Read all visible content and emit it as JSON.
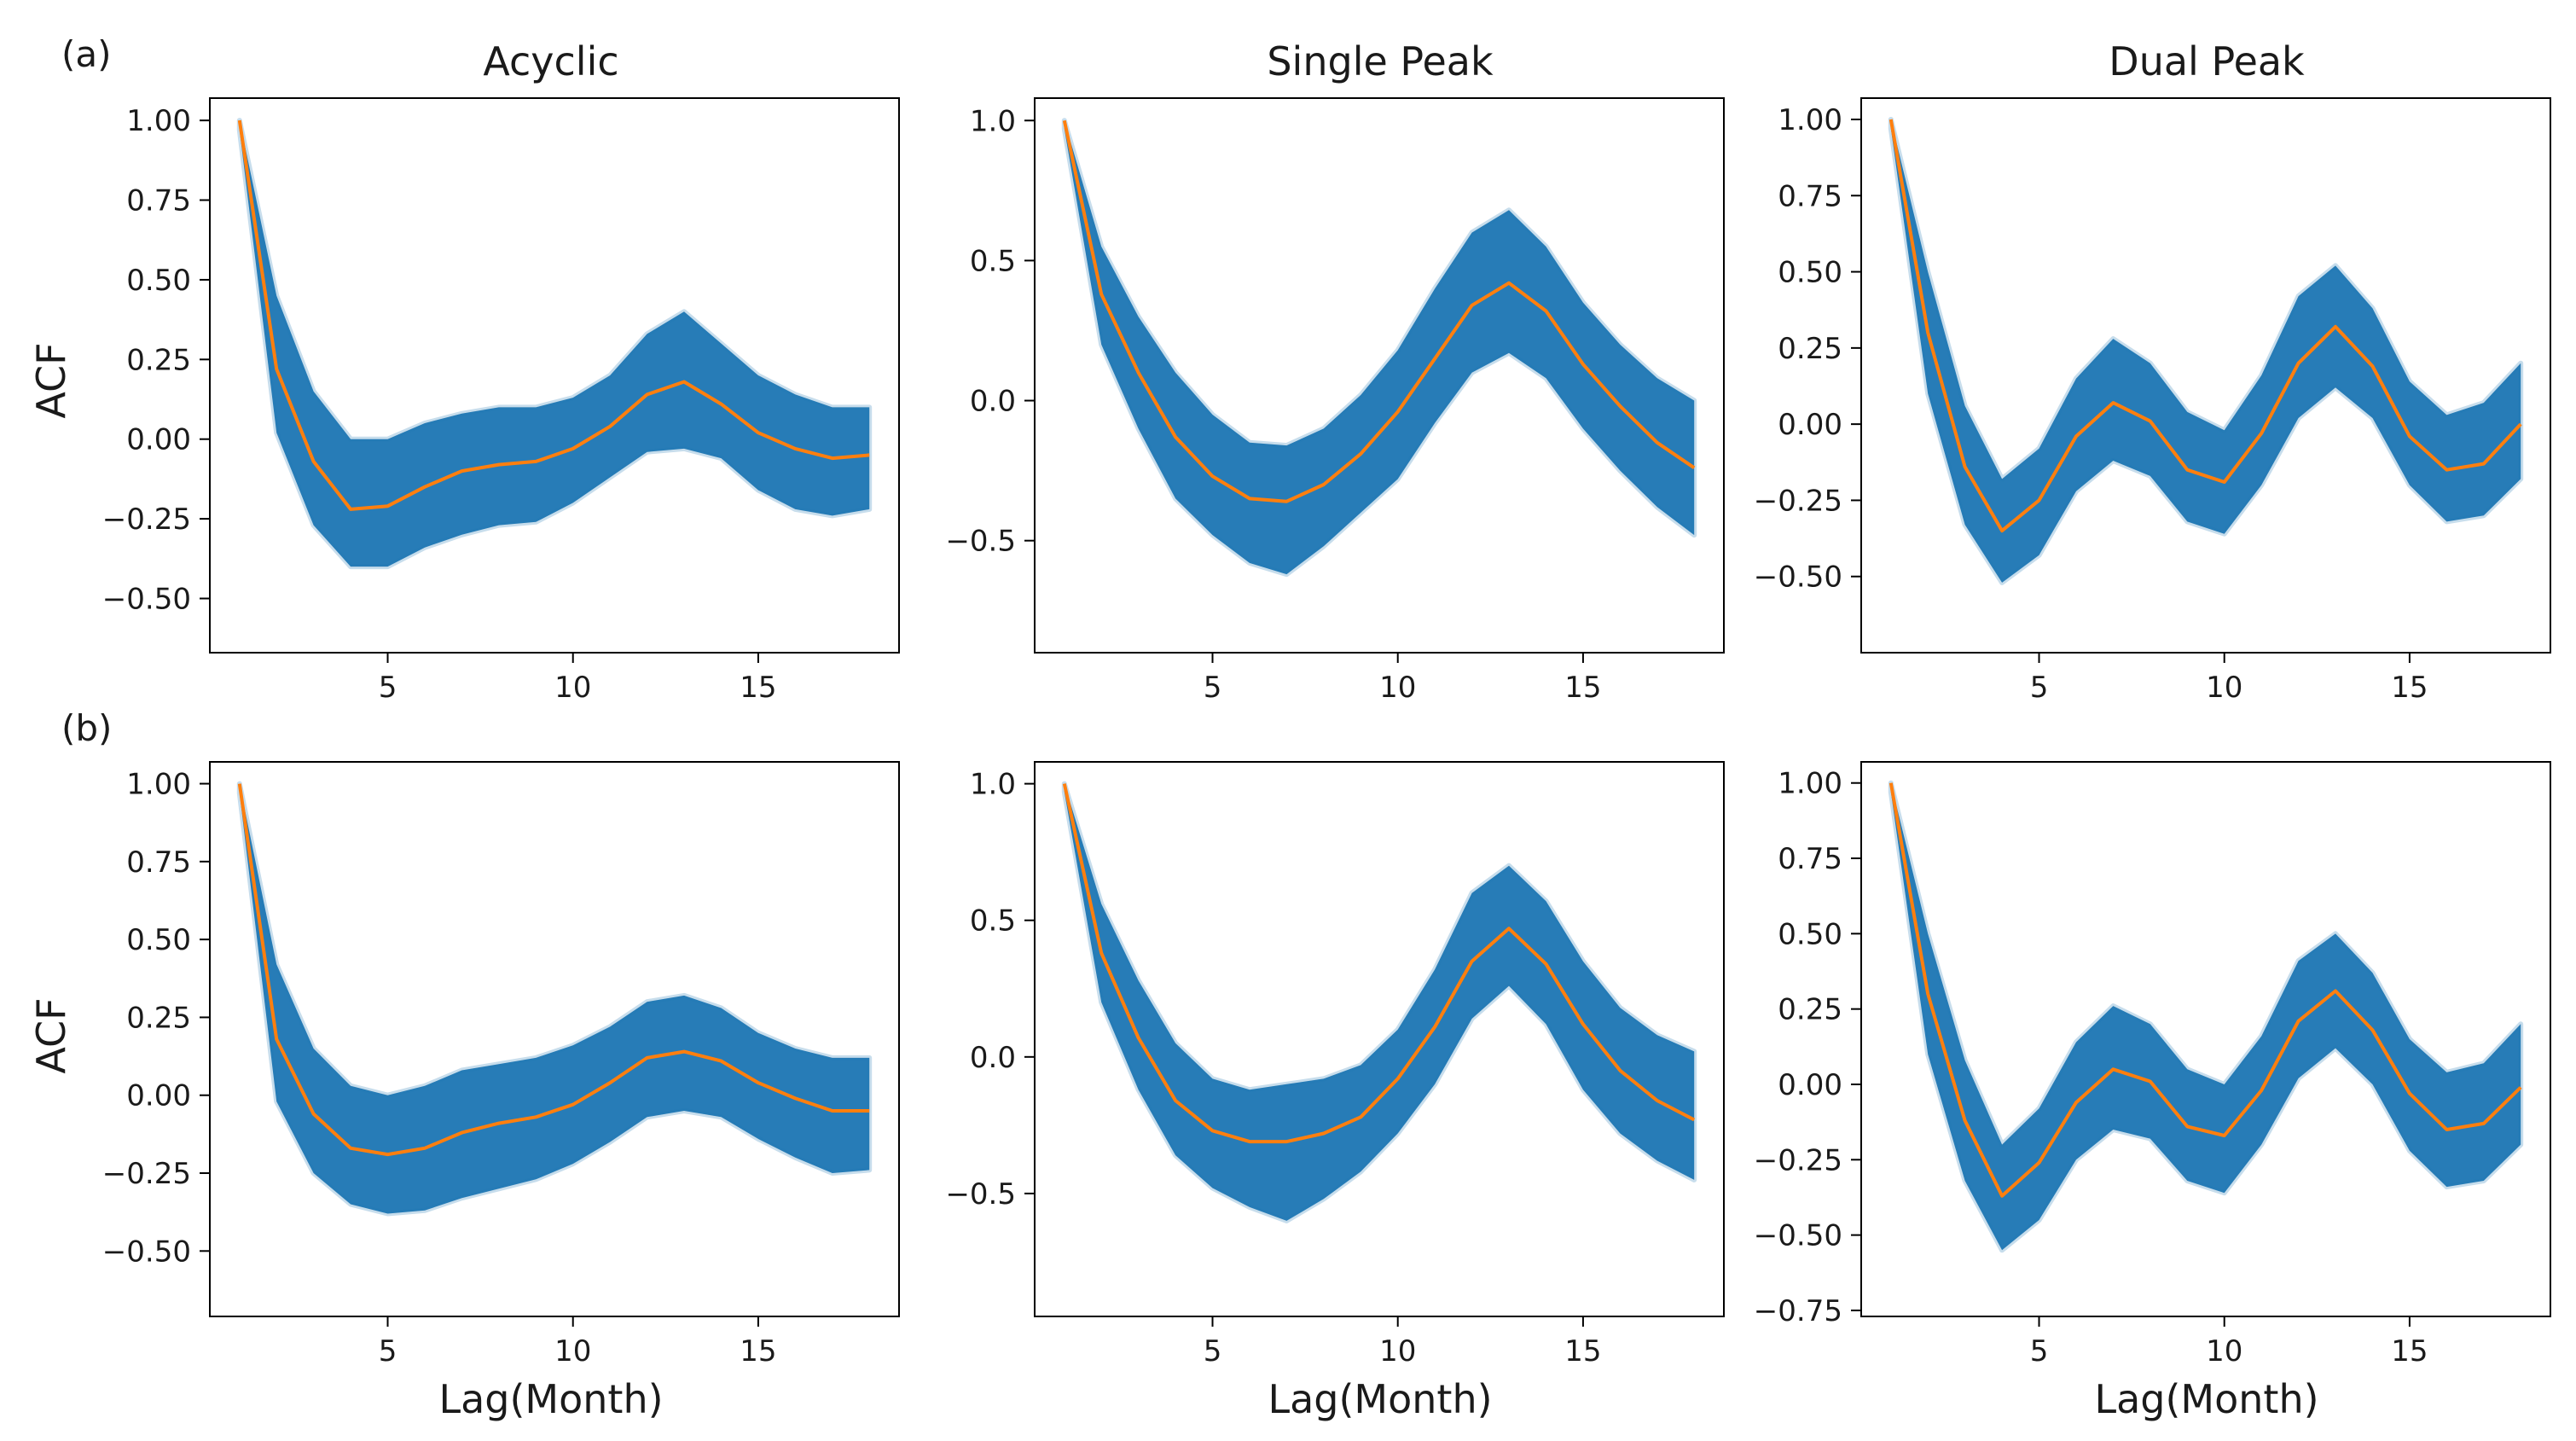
{
  "row_labels": [
    "(a)",
    "(b)"
  ],
  "column_titles": [
    "Acyclic",
    "Single Peak",
    "Dual Peak"
  ],
  "xlabel": "Lag(Month)",
  "ylabel": "ACF",
  "colors": {
    "band": "#1f77b4",
    "mean": "#ff7f0e",
    "axis": "#000000"
  },
  "chart_data": [
    {
      "id": "a-acyclic",
      "type": "line",
      "row": "(a)",
      "title": "Acyclic",
      "xlabel": "",
      "ylabel": "ACF",
      "xlim": [
        0.2,
        18.8
      ],
      "ylim": [
        -0.67,
        1.07
      ],
      "xticks": [
        5,
        10,
        15
      ],
      "yticks": [
        1.0,
        0.75,
        0.5,
        0.25,
        0.0,
        -0.25,
        -0.5
      ],
      "ytick_labels": [
        "1.00",
        "0.75",
        "0.50",
        "0.25",
        "0.00",
        "−0.25",
        "−0.50"
      ],
      "x": [
        1,
        2,
        3,
        4,
        5,
        6,
        7,
        8,
        9,
        10,
        11,
        12,
        13,
        14,
        15,
        16,
        17,
        18
      ],
      "series": [
        {
          "name": "mean ACF",
          "values": [
            1.0,
            0.22,
            -0.07,
            -0.22,
            -0.21,
            -0.15,
            -0.1,
            -0.08,
            -0.07,
            -0.03,
            0.04,
            0.14,
            0.18,
            0.11,
            0.02,
            -0.03,
            -0.06,
            -0.05
          ]
        }
      ],
      "band": {
        "upper": [
          1.0,
          0.45,
          0.15,
          0.0,
          0.0,
          0.05,
          0.08,
          0.1,
          0.1,
          0.13,
          0.2,
          0.33,
          0.4,
          0.3,
          0.2,
          0.14,
          0.1,
          0.1
        ],
        "lower": [
          0.97,
          0.02,
          -0.27,
          -0.4,
          -0.4,
          -0.34,
          -0.3,
          -0.27,
          -0.26,
          -0.2,
          -0.12,
          -0.04,
          -0.03,
          -0.06,
          -0.16,
          -0.22,
          -0.24,
          -0.22
        ]
      }
    },
    {
      "id": "a-single",
      "type": "line",
      "row": "(a)",
      "title": "Single Peak",
      "xlabel": "",
      "ylabel": "",
      "xlim": [
        0.2,
        18.8
      ],
      "ylim": [
        -0.9,
        1.08
      ],
      "xticks": [
        5,
        10,
        15
      ],
      "yticks": [
        1.0,
        0.5,
        0.0,
        -0.5
      ],
      "ytick_labels": [
        "1.0",
        "0.5",
        "0.0",
        "−0.5"
      ],
      "x": [
        1,
        2,
        3,
        4,
        5,
        6,
        7,
        8,
        9,
        10,
        11,
        12,
        13,
        14,
        15,
        16,
        17,
        18
      ],
      "series": [
        {
          "name": "mean ACF",
          "values": [
            1.0,
            0.38,
            0.1,
            -0.13,
            -0.27,
            -0.35,
            -0.36,
            -0.3,
            -0.19,
            -0.04,
            0.15,
            0.34,
            0.42,
            0.32,
            0.13,
            -0.02,
            -0.15,
            -0.24
          ]
        }
      ],
      "band": {
        "upper": [
          1.0,
          0.55,
          0.3,
          0.1,
          -0.05,
          -0.15,
          -0.16,
          -0.1,
          0.02,
          0.18,
          0.4,
          0.6,
          0.68,
          0.55,
          0.35,
          0.2,
          0.08,
          0.0
        ],
        "lower": [
          0.97,
          0.2,
          -0.1,
          -0.35,
          -0.48,
          -0.58,
          -0.62,
          -0.52,
          -0.4,
          -0.28,
          -0.08,
          0.1,
          0.17,
          0.08,
          -0.1,
          -0.25,
          -0.38,
          -0.48
        ]
      }
    },
    {
      "id": "a-dual",
      "type": "line",
      "row": "(a)",
      "title": "Dual Peak",
      "xlabel": "",
      "ylabel": "",
      "xlim": [
        0.2,
        18.8
      ],
      "ylim": [
        -0.75,
        1.07
      ],
      "xticks": [
        5,
        10,
        15
      ],
      "yticks": [
        1.0,
        0.75,
        0.5,
        0.25,
        0.0,
        -0.25,
        -0.5
      ],
      "ytick_labels": [
        "1.00",
        "0.75",
        "0.50",
        "0.25",
        "0.00",
        "−0.25",
        "−0.50"
      ],
      "x": [
        1,
        2,
        3,
        4,
        5,
        6,
        7,
        8,
        9,
        10,
        11,
        12,
        13,
        14,
        15,
        16,
        17,
        18
      ],
      "series": [
        {
          "name": "mean ACF",
          "values": [
            1.0,
            0.3,
            -0.14,
            -0.35,
            -0.25,
            -0.04,
            0.07,
            0.01,
            -0.15,
            -0.19,
            -0.03,
            0.2,
            0.32,
            0.19,
            -0.04,
            -0.15,
            -0.13,
            0.0
          ]
        }
      ],
      "band": {
        "upper": [
          1.0,
          0.5,
          0.06,
          -0.18,
          -0.08,
          0.15,
          0.28,
          0.2,
          0.04,
          -0.02,
          0.16,
          0.42,
          0.52,
          0.38,
          0.14,
          0.03,
          0.07,
          0.2
        ],
        "lower": [
          0.97,
          0.1,
          -0.33,
          -0.52,
          -0.43,
          -0.22,
          -0.12,
          -0.17,
          -0.32,
          -0.36,
          -0.2,
          0.02,
          0.12,
          0.02,
          -0.2,
          -0.32,
          -0.3,
          -0.18
        ]
      }
    },
    {
      "id": "b-acyclic",
      "type": "line",
      "row": "(b)",
      "title": "",
      "xlabel": "Lag(Month)",
      "ylabel": "ACF",
      "xlim": [
        0.2,
        18.8
      ],
      "ylim": [
        -0.71,
        1.07
      ],
      "xticks": [
        5,
        10,
        15
      ],
      "yticks": [
        1.0,
        0.75,
        0.5,
        0.25,
        0.0,
        -0.25,
        -0.5
      ],
      "ytick_labels": [
        "1.00",
        "0.75",
        "0.50",
        "0.25",
        "0.00",
        "−0.25",
        "−0.50"
      ],
      "x": [
        1,
        2,
        3,
        4,
        5,
        6,
        7,
        8,
        9,
        10,
        11,
        12,
        13,
        14,
        15,
        16,
        17,
        18
      ],
      "series": [
        {
          "name": "mean ACF",
          "values": [
            1.0,
            0.18,
            -0.06,
            -0.17,
            -0.19,
            -0.17,
            -0.12,
            -0.09,
            -0.07,
            -0.03,
            0.04,
            0.12,
            0.14,
            0.11,
            0.04,
            -0.01,
            -0.05,
            -0.05
          ]
        }
      ],
      "band": {
        "upper": [
          1.0,
          0.42,
          0.15,
          0.03,
          0.0,
          0.03,
          0.08,
          0.1,
          0.12,
          0.16,
          0.22,
          0.3,
          0.32,
          0.28,
          0.2,
          0.15,
          0.12,
          0.12
        ],
        "lower": [
          0.97,
          -0.02,
          -0.25,
          -0.35,
          -0.38,
          -0.37,
          -0.33,
          -0.3,
          -0.27,
          -0.22,
          -0.15,
          -0.07,
          -0.05,
          -0.07,
          -0.14,
          -0.2,
          -0.25,
          -0.24
        ]
      }
    },
    {
      "id": "b-single",
      "type": "line",
      "row": "(b)",
      "title": "",
      "xlabel": "Lag(Month)",
      "ylabel": "",
      "xlim": [
        0.2,
        18.8
      ],
      "ylim": [
        -0.95,
        1.08
      ],
      "xticks": [
        5,
        10,
        15
      ],
      "yticks": [
        1.0,
        0.5,
        0.0,
        -0.5
      ],
      "ytick_labels": [
        "1.0",
        "0.5",
        "0.0",
        "−0.5"
      ],
      "x": [
        1,
        2,
        3,
        4,
        5,
        6,
        7,
        8,
        9,
        10,
        11,
        12,
        13,
        14,
        15,
        16,
        17,
        18
      ],
      "series": [
        {
          "name": "mean ACF",
          "values": [
            1.0,
            0.38,
            0.07,
            -0.16,
            -0.27,
            -0.31,
            -0.31,
            -0.28,
            -0.22,
            -0.08,
            0.11,
            0.35,
            0.47,
            0.34,
            0.12,
            -0.05,
            -0.16,
            -0.23
          ]
        }
      ],
      "band": {
        "upper": [
          1.0,
          0.56,
          0.28,
          0.05,
          -0.08,
          -0.12,
          -0.1,
          -0.08,
          -0.03,
          0.1,
          0.32,
          0.6,
          0.7,
          0.57,
          0.35,
          0.18,
          0.08,
          0.02
        ],
        "lower": [
          0.97,
          0.2,
          -0.12,
          -0.36,
          -0.48,
          -0.55,
          -0.6,
          -0.52,
          -0.42,
          -0.28,
          -0.1,
          0.14,
          0.26,
          0.12,
          -0.12,
          -0.28,
          -0.38,
          -0.45
        ]
      }
    },
    {
      "id": "b-dual",
      "type": "line",
      "row": "(b)",
      "title": "",
      "xlabel": "Lag(Month)",
      "ylabel": "",
      "xlim": [
        0.2,
        18.8
      ],
      "ylim": [
        -0.77,
        1.07
      ],
      "xticks": [
        5,
        10,
        15
      ],
      "yticks": [
        1.0,
        0.75,
        0.5,
        0.25,
        0.0,
        -0.25,
        -0.5,
        -0.75
      ],
      "ytick_labels": [
        "1.00",
        "0.75",
        "0.50",
        "0.25",
        "0.00",
        "−0.25",
        "−0.50",
        "−0.75"
      ],
      "x": [
        1,
        2,
        3,
        4,
        5,
        6,
        7,
        8,
        9,
        10,
        11,
        12,
        13,
        14,
        15,
        16,
        17,
        18
      ],
      "series": [
        {
          "name": "mean ACF",
          "values": [
            1.0,
            0.3,
            -0.12,
            -0.37,
            -0.26,
            -0.06,
            0.05,
            0.01,
            -0.14,
            -0.17,
            -0.02,
            0.21,
            0.31,
            0.18,
            -0.03,
            -0.15,
            -0.13,
            -0.01
          ]
        }
      ],
      "band": {
        "upper": [
          1.0,
          0.5,
          0.08,
          -0.2,
          -0.08,
          0.14,
          0.26,
          0.2,
          0.05,
          0.0,
          0.16,
          0.41,
          0.5,
          0.37,
          0.15,
          0.04,
          0.07,
          0.2
        ],
        "lower": [
          0.97,
          0.1,
          -0.32,
          -0.55,
          -0.45,
          -0.25,
          -0.15,
          -0.18,
          -0.32,
          -0.36,
          -0.2,
          0.02,
          0.12,
          0.0,
          -0.22,
          -0.34,
          -0.32,
          -0.2
        ]
      }
    }
  ]
}
